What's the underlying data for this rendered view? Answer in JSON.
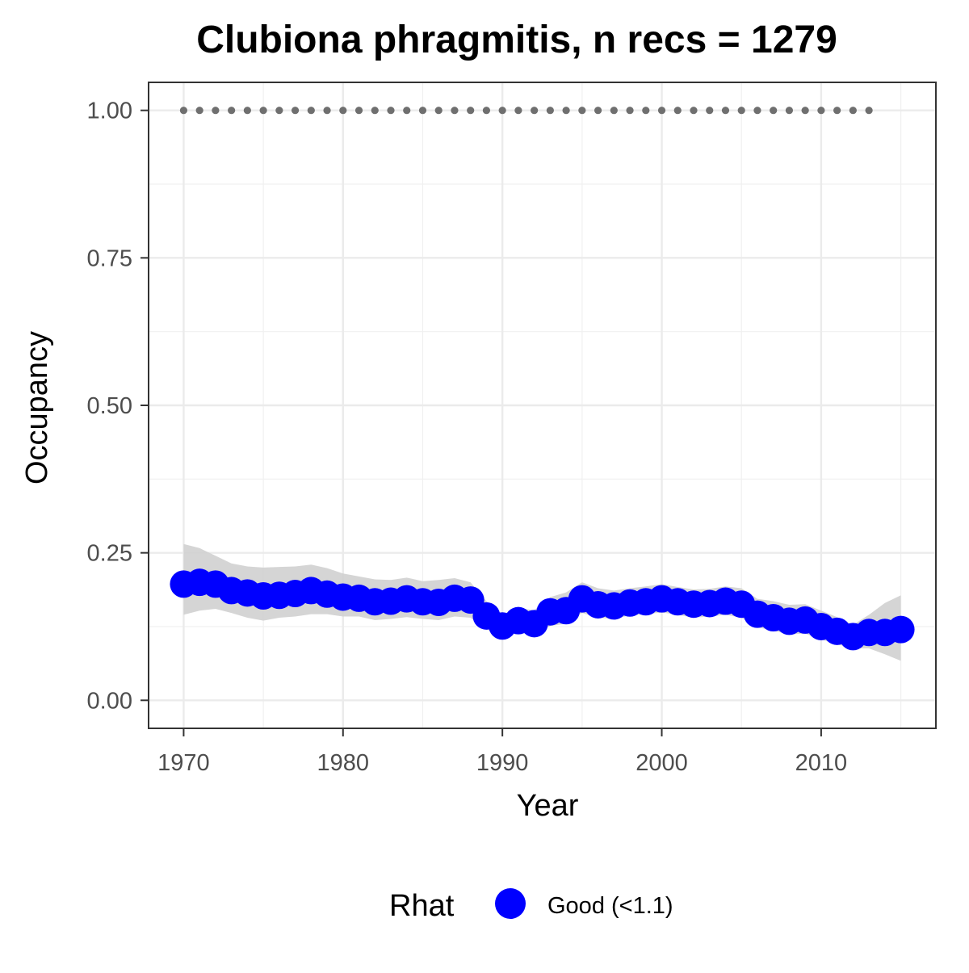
{
  "chart_data": {
    "type": "line",
    "title": "Clubiona phragmitis, n recs = 1279",
    "xlabel": "Year",
    "ylabel": "Occupancy",
    "xlim": [
      1967.8,
      2017.2
    ],
    "ylim": [
      -0.0475,
      1.0475
    ],
    "x_ticks": [
      1970,
      1980,
      1990,
      2000,
      2010
    ],
    "y_ticks": [
      0.0,
      0.25,
      0.5,
      0.75,
      1.0
    ],
    "x_tick_labels": [
      "1970",
      "1980",
      "1990",
      "2000",
      "2010"
    ],
    "y_tick_labels": [
      "0.00",
      "0.25",
      "0.50",
      "0.75",
      "1.00"
    ],
    "grid": true,
    "legend": {
      "title": "Rhat",
      "position": "bottom",
      "entries": [
        {
          "label": "Good (<1.1)",
          "color": "#0000ff"
        }
      ]
    },
    "colors": {
      "points": "#0000ff",
      "ribbon": "#d0d0d0",
      "reference_dots": "#6f6f6f"
    },
    "series": [
      {
        "name": "Good (<1.1)",
        "x": [
          1970,
          1971,
          1972,
          1973,
          1974,
          1975,
          1976,
          1977,
          1978,
          1979,
          1980,
          1981,
          1982,
          1983,
          1984,
          1985,
          1986,
          1987,
          1988,
          1989,
          1990,
          1991,
          1992,
          1993,
          1994,
          1995,
          1996,
          1997,
          1998,
          1999,
          2000,
          2001,
          2002,
          2003,
          2004,
          2005,
          2006,
          2007,
          2008,
          2009,
          2010,
          2011,
          2012,
          2013,
          2014,
          2015
        ],
        "y": [
          0.197,
          0.2,
          0.197,
          0.186,
          0.182,
          0.177,
          0.178,
          0.181,
          0.186,
          0.18,
          0.175,
          0.173,
          0.167,
          0.168,
          0.172,
          0.167,
          0.166,
          0.173,
          0.17,
          0.143,
          0.126,
          0.135,
          0.13,
          0.15,
          0.152,
          0.172,
          0.162,
          0.16,
          0.165,
          0.167,
          0.172,
          0.167,
          0.163,
          0.164,
          0.168,
          0.163,
          0.146,
          0.14,
          0.134,
          0.136,
          0.125,
          0.117,
          0.108,
          0.115,
          0.115,
          0.12
        ],
        "lower": [
          0.145,
          0.152,
          0.155,
          0.148,
          0.14,
          0.135,
          0.14,
          0.142,
          0.146,
          0.146,
          0.142,
          0.142,
          0.136,
          0.138,
          0.141,
          0.138,
          0.136,
          0.142,
          0.14,
          0.12,
          0.11,
          0.115,
          0.112,
          0.126,
          0.13,
          0.148,
          0.14,
          0.138,
          0.144,
          0.146,
          0.149,
          0.145,
          0.14,
          0.142,
          0.145,
          0.14,
          0.124,
          0.118,
          0.112,
          0.113,
          0.103,
          0.095,
          0.088,
          0.088,
          0.078,
          0.067
        ],
        "upper": [
          0.265,
          0.258,
          0.245,
          0.232,
          0.227,
          0.225,
          0.226,
          0.227,
          0.23,
          0.224,
          0.215,
          0.21,
          0.205,
          0.204,
          0.208,
          0.202,
          0.204,
          0.207,
          0.2,
          0.168,
          0.146,
          0.156,
          0.153,
          0.175,
          0.183,
          0.2,
          0.19,
          0.186,
          0.19,
          0.193,
          0.197,
          0.192,
          0.188,
          0.189,
          0.193,
          0.19,
          0.172,
          0.168,
          0.162,
          0.163,
          0.152,
          0.141,
          0.128,
          0.145,
          0.165,
          0.178
        ]
      },
      {
        "x": [
          1970,
          1971,
          1972,
          1973,
          1974,
          1975,
          1976,
          1977,
          1978,
          1979,
          1980,
          1981,
          1982,
          1983,
          1984,
          1985,
          1986,
          1987,
          1988,
          1989,
          1990,
          1991,
          1992,
          1993,
          1994,
          1995,
          1996,
          1997,
          1998,
          1999,
          2000,
          2001,
          2002,
          2003,
          2004,
          2005,
          2006,
          2007,
          2008,
          2009,
          2010,
          2011,
          2012,
          2013
        ],
        "y": [
          1,
          1,
          1,
          1,
          1,
          1,
          1,
          1,
          1,
          1,
          1,
          1,
          1,
          1,
          1,
          1,
          1,
          1,
          1,
          1,
          1,
          1,
          1,
          1,
          1,
          1,
          1,
          1,
          1,
          1,
          1,
          1,
          1,
          1,
          1,
          1,
          1,
          1,
          1,
          1,
          1,
          1,
          1,
          1
        ]
      }
    ]
  }
}
